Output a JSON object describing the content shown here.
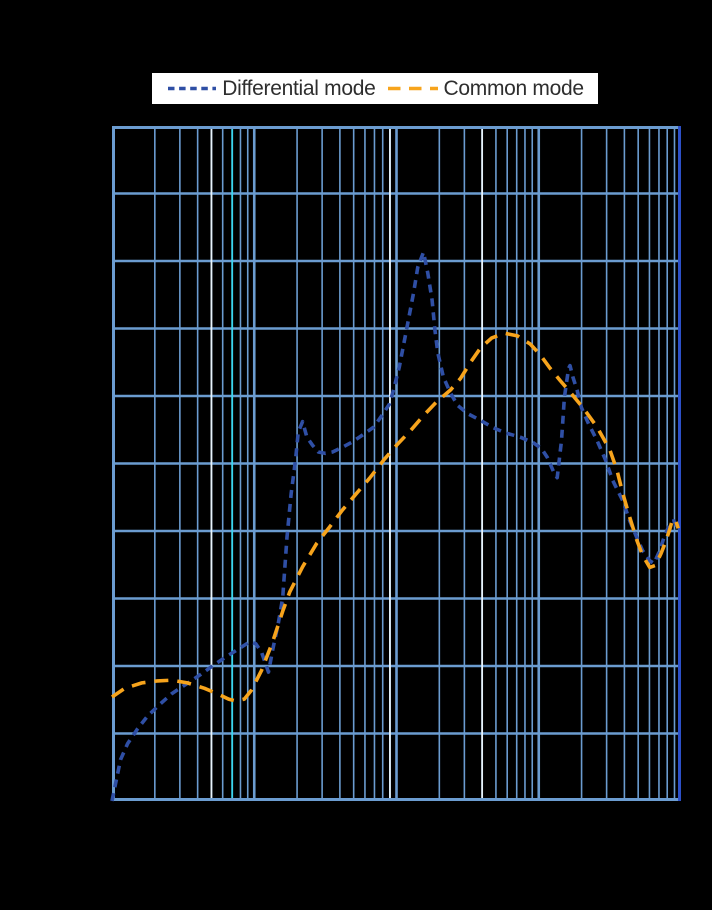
{
  "page": {
    "background": "#000000"
  },
  "chart_data": {
    "type": "line",
    "title": "",
    "x_axis": {
      "scale": "log",
      "decades": 4,
      "unit": "log decades (tick labels not visible in image)",
      "labels_visible": false
    },
    "y_axis": {
      "scale": "linear",
      "divisions": 10,
      "unit": "axis divisions 0-10 (tick labels not visible in image)",
      "labels_visible": false,
      "ylim": [
        0,
        10
      ]
    },
    "grid": {
      "on": true,
      "minor_x_positions": [
        2,
        3,
        4,
        5,
        6,
        7,
        8,
        9
      ]
    },
    "style": {
      "background": "#000000",
      "grid_color": "#6b9cd0",
      "border_color": "#6b9cd0",
      "right_border_color": "#2d50c8",
      "marker_white": "#e8f4fc",
      "marker_cyan": "#3bd6ef"
    },
    "marker_lines": [
      {
        "x_dec": 0.699,
        "color_key": "marker_white"
      },
      {
        "x_dec": 0.845,
        "color_key": "marker_cyan"
      },
      {
        "x_dec": 1.954,
        "color_key": "marker_white"
      },
      {
        "x_dec": 2.602,
        "color_key": "marker_white"
      }
    ],
    "legend": {
      "position": "top-center",
      "background": "#ffffff",
      "entries": [
        {
          "label": "Differential mode",
          "color": "#2f4fa5",
          "dash_style": "short-dash"
        },
        {
          "label": "Common mode",
          "color": "#f7a41c",
          "dash_style": "long-dash"
        }
      ]
    },
    "series": [
      {
        "name": "Differential mode",
        "color": "#2f4fa5",
        "dash_style": "short-dash",
        "points": [
          [
            0.0,
            0.0
          ],
          [
            0.03,
            0.31
          ],
          [
            0.06,
            0.61
          ],
          [
            0.11,
            0.85
          ],
          [
            0.18,
            1.07
          ],
          [
            0.25,
            1.26
          ],
          [
            0.34,
            1.44
          ],
          [
            0.42,
            1.59
          ],
          [
            0.52,
            1.73
          ],
          [
            0.62,
            1.87
          ],
          [
            0.72,
            2.02
          ],
          [
            0.82,
            2.16
          ],
          [
            0.91,
            2.28
          ],
          [
            0.97,
            2.36
          ],
          [
            1.01,
            2.33
          ],
          [
            1.05,
            2.21
          ],
          [
            1.1,
            1.91
          ],
          [
            1.13,
            2.24
          ],
          [
            1.17,
            2.64
          ],
          [
            1.2,
            3.01
          ],
          [
            1.23,
            3.91
          ],
          [
            1.26,
            4.56
          ],
          [
            1.29,
            5.05
          ],
          [
            1.31,
            5.47
          ],
          [
            1.34,
            5.62
          ],
          [
            1.37,
            5.39
          ],
          [
            1.41,
            5.27
          ],
          [
            1.45,
            5.17
          ],
          [
            1.5,
            5.15
          ],
          [
            1.55,
            5.17
          ],
          [
            1.62,
            5.24
          ],
          [
            1.69,
            5.32
          ],
          [
            1.76,
            5.42
          ],
          [
            1.84,
            5.54
          ],
          [
            1.9,
            5.72
          ],
          [
            1.95,
            5.88
          ],
          [
            1.98,
            6.1
          ],
          [
            2.02,
            6.43
          ],
          [
            2.07,
            6.98
          ],
          [
            2.12,
            7.53
          ],
          [
            2.15,
            7.91
          ],
          [
            2.19,
            8.13
          ],
          [
            2.22,
            7.82
          ],
          [
            2.25,
            7.42
          ],
          [
            2.27,
            6.98
          ],
          [
            2.29,
            6.64
          ],
          [
            2.33,
            6.28
          ],
          [
            2.38,
            6.04
          ],
          [
            2.43,
            5.86
          ],
          [
            2.5,
            5.74
          ],
          [
            2.59,
            5.64
          ],
          [
            2.68,
            5.53
          ],
          [
            2.77,
            5.45
          ],
          [
            2.87,
            5.39
          ],
          [
            2.96,
            5.31
          ],
          [
            3.02,
            5.22
          ],
          [
            3.06,
            5.09
          ],
          [
            3.11,
            4.85
          ],
          [
            3.13,
            4.79
          ],
          [
            3.16,
            5.34
          ],
          [
            3.18,
            5.98
          ],
          [
            3.21,
            6.41
          ],
          [
            3.22,
            6.45
          ],
          [
            3.24,
            6.28
          ],
          [
            3.27,
            6.08
          ],
          [
            3.3,
            5.83
          ],
          [
            3.35,
            5.59
          ],
          [
            3.41,
            5.34
          ],
          [
            3.47,
            5.05
          ],
          [
            3.52,
            4.75
          ],
          [
            3.59,
            4.45
          ],
          [
            3.64,
            4.15
          ],
          [
            3.69,
            3.9
          ],
          [
            3.73,
            3.71
          ],
          [
            3.78,
            3.56
          ],
          [
            3.81,
            3.52
          ],
          [
            3.85,
            3.71
          ],
          [
            3.88,
            3.9
          ],
          [
            3.91,
            4.05
          ],
          [
            3.93,
            4.14
          ],
          [
            3.95,
            4.15
          ],
          [
            3.97,
            4.07
          ]
        ]
      },
      {
        "name": "Common mode",
        "color": "#f7a41c",
        "dash_style": "long-dash",
        "points": [
          [
            0.0,
            1.54
          ],
          [
            0.09,
            1.67
          ],
          [
            0.21,
            1.75
          ],
          [
            0.32,
            1.78
          ],
          [
            0.42,
            1.79
          ],
          [
            0.53,
            1.75
          ],
          [
            0.65,
            1.67
          ],
          [
            0.75,
            1.58
          ],
          [
            0.82,
            1.51
          ],
          [
            0.87,
            1.48
          ],
          [
            0.93,
            1.51
          ],
          [
            0.98,
            1.64
          ],
          [
            1.05,
            1.93
          ],
          [
            1.13,
            2.36
          ],
          [
            1.2,
            2.81
          ],
          [
            1.25,
            3.1
          ],
          [
            1.34,
            3.47
          ],
          [
            1.44,
            3.82
          ],
          [
            1.53,
            4.06
          ],
          [
            1.62,
            4.31
          ],
          [
            1.72,
            4.56
          ],
          [
            1.81,
            4.78
          ],
          [
            1.91,
            5.05
          ],
          [
            2.0,
            5.27
          ],
          [
            2.1,
            5.49
          ],
          [
            2.19,
            5.71
          ],
          [
            2.28,
            5.91
          ],
          [
            2.38,
            6.09
          ],
          [
            2.45,
            6.26
          ],
          [
            2.52,
            6.5
          ],
          [
            2.59,
            6.71
          ],
          [
            2.67,
            6.86
          ],
          [
            2.76,
            6.93
          ],
          [
            2.85,
            6.89
          ],
          [
            2.94,
            6.77
          ],
          [
            3.01,
            6.61
          ],
          [
            3.08,
            6.41
          ],
          [
            3.15,
            6.23
          ],
          [
            3.22,
            6.06
          ],
          [
            3.31,
            5.83
          ],
          [
            3.41,
            5.54
          ],
          [
            3.5,
            5.2
          ],
          [
            3.55,
            4.9
          ],
          [
            3.59,
            4.56
          ],
          [
            3.64,
            4.2
          ],
          [
            3.69,
            3.86
          ],
          [
            3.73,
            3.64
          ],
          [
            3.78,
            3.46
          ],
          [
            3.82,
            3.49
          ],
          [
            3.86,
            3.67
          ],
          [
            3.89,
            3.83
          ],
          [
            3.92,
            4.02
          ],
          [
            3.94,
            4.17
          ],
          [
            3.96,
            4.17
          ],
          [
            3.98,
            4.04
          ]
        ]
      }
    ]
  }
}
